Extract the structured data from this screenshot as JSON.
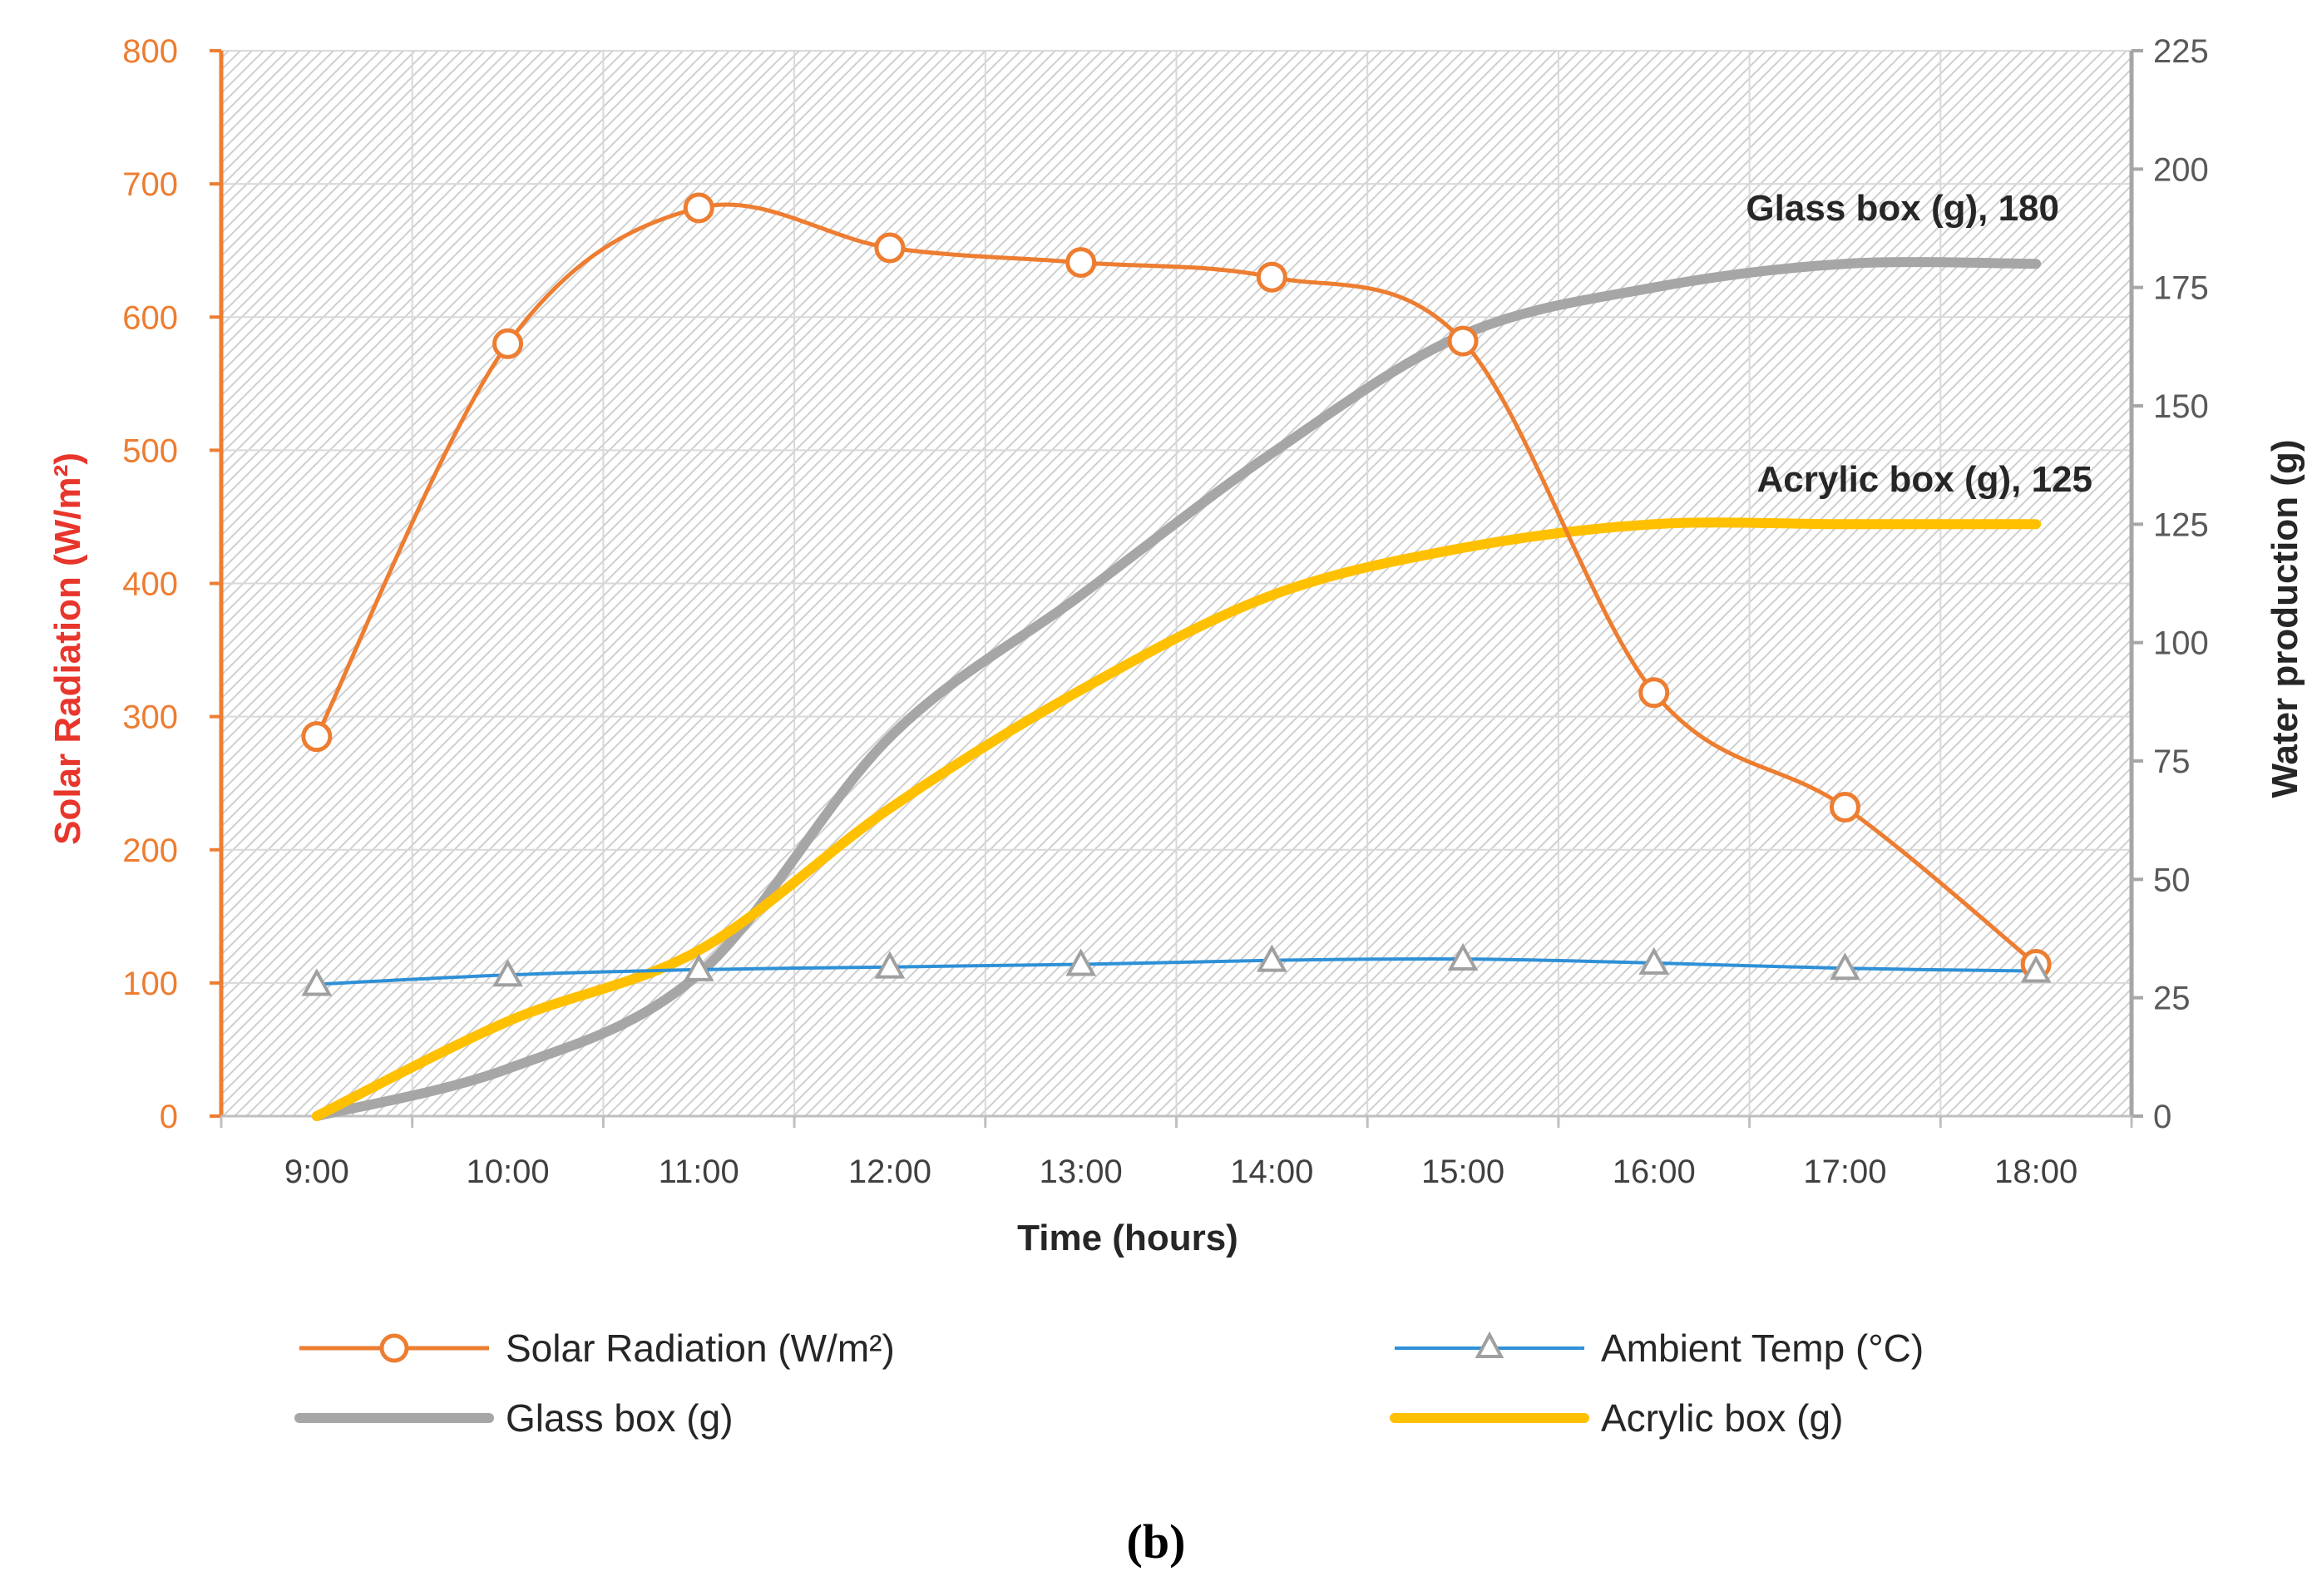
{
  "chart_data": {
    "type": "line",
    "caption": "(b)",
    "categories": [
      "9:00",
      "10:00",
      "11:00",
      "12:00",
      "13:00",
      "14:00",
      "15:00",
      "16:00",
      "17:00",
      "18:00"
    ],
    "xlabel": "Time (hours)",
    "ylabel_left": "Solar Radiation (W/m²)",
    "ylabel_right": "Water production (g)",
    "ylim_left": [
      0,
      800
    ],
    "ylim_right": [
      0,
      225
    ],
    "yticks_left": [
      "0",
      "100",
      "200",
      "300",
      "400",
      "500",
      "600",
      "700",
      "800"
    ],
    "yticks_right": [
      "0",
      "25",
      "50",
      "75",
      "100",
      "125",
      "150",
      "175",
      "200",
      "225"
    ],
    "grid": true,
    "legend_position": "bottom",
    "series": [
      {
        "name": "Solar Radiation (W/m²)",
        "axis": "left",
        "color": "#ED7D31",
        "marker": "circle",
        "values": [
          285,
          580,
          682,
          652,
          641,
          630,
          582,
          318,
          232,
          114
        ]
      },
      {
        "name": "Ambient Temp (°C)",
        "axis": "left",
        "color": "#2E90D6",
        "marker": "triangle",
        "values": [
          99,
          106,
          110,
          112,
          114,
          117,
          118,
          115,
          111,
          109
        ]
      },
      {
        "name": "Glass box (g)",
        "axis": "right",
        "color": "#A6A6A6",
        "marker": "none",
        "values": [
          0,
          10,
          30,
          80,
          110,
          140,
          165,
          175,
          180,
          180
        ]
      },
      {
        "name": "Acrylic box (g)",
        "axis": "right",
        "color": "#FFC000",
        "marker": "none",
        "values": [
          0,
          20,
          35,
          65,
          90,
          110,
          120,
          125,
          125,
          125
        ]
      }
    ],
    "annotations": [
      {
        "series": "Glass box (g)",
        "text": "Glass box (g), 180"
      },
      {
        "series": "Acrylic box (g)",
        "text": "Acrylic box (g), 125"
      }
    ]
  }
}
